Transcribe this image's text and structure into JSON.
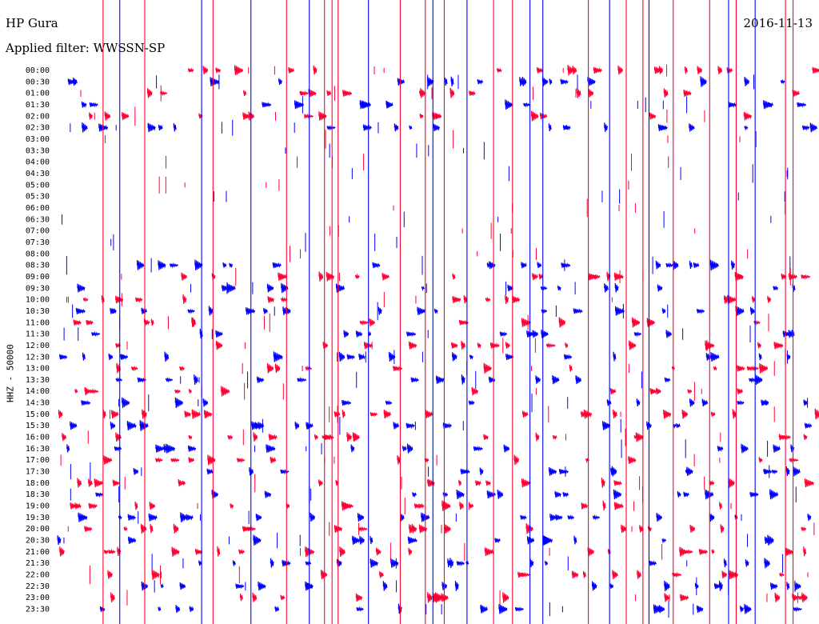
{
  "header": {
    "station": "HP Gura",
    "date": "2016-11-13",
    "filter": "Applied filter: WWSSN-SP"
  },
  "chart_data": {
    "type": "line",
    "ylabel": "HHZ - 50000",
    "colors": [
      "#ff0033",
      "#0000ff"
    ],
    "categories": [
      "00:00",
      "00:30",
      "01:00",
      "01:30",
      "02:00",
      "02:30",
      "03:00",
      "03:30",
      "04:00",
      "04:30",
      "05:00",
      "05:30",
      "06:00",
      "06:30",
      "07:00",
      "07:30",
      "08:00",
      "08:30",
      "09:00",
      "09:30",
      "10:00",
      "10:30",
      "11:00",
      "11:30",
      "12:00",
      "12:30",
      "13:00",
      "13:30",
      "14:00",
      "14:30",
      "15:00",
      "15:30",
      "16:00",
      "16:30",
      "17:00",
      "17:30",
      "18:00",
      "18:30",
      "19:00",
      "19:30",
      "20:00",
      "20:30",
      "21:00",
      "21:30",
      "22:00",
      "22:30",
      "23:00",
      "23:30"
    ],
    "spikes": [
      {
        "x": 0.06,
        "color": 0
      },
      {
        "x": 0.082,
        "color": 1
      },
      {
        "x": 0.115,
        "color": 0
      },
      {
        "x": 0.19,
        "color": 1
      },
      {
        "x": 0.205,
        "color": 0
      },
      {
        "x": 0.255,
        "color": 1
      },
      {
        "x": 0.302,
        "color": 0
      },
      {
        "x": 0.332,
        "color": 1
      },
      {
        "x": 0.352,
        "color": 0
      },
      {
        "x": 0.362,
        "color": 0
      },
      {
        "x": 0.37,
        "color": 0
      },
      {
        "x": 0.41,
        "color": 1
      },
      {
        "x": 0.452,
        "color": 0
      },
      {
        "x": 0.485,
        "color": 0
      },
      {
        "x": 0.495,
        "color": 1
      },
      {
        "x": 0.51,
        "color": 0
      },
      {
        "x": 0.54,
        "color": 1
      },
      {
        "x": 0.575,
        "color": 0
      },
      {
        "x": 0.6,
        "color": 0
      },
      {
        "x": 0.623,
        "color": 1
      },
      {
        "x": 0.64,
        "color": 1
      },
      {
        "x": 0.7,
        "color": 0
      },
      {
        "x": 0.728,
        "color": 1
      },
      {
        "x": 0.75,
        "color": 0
      },
      {
        "x": 0.772,
        "color": 0
      },
      {
        "x": 0.78,
        "color": 1
      },
      {
        "x": 0.812,
        "color": 0
      },
      {
        "x": 0.86,
        "color": 0
      },
      {
        "x": 0.885,
        "color": 1
      },
      {
        "x": 0.895,
        "color": 0
      },
      {
        "x": 0.92,
        "color": 1
      },
      {
        "x": 0.96,
        "color": 0
      },
      {
        "x": 0.97,
        "color": 0
      }
    ]
  }
}
